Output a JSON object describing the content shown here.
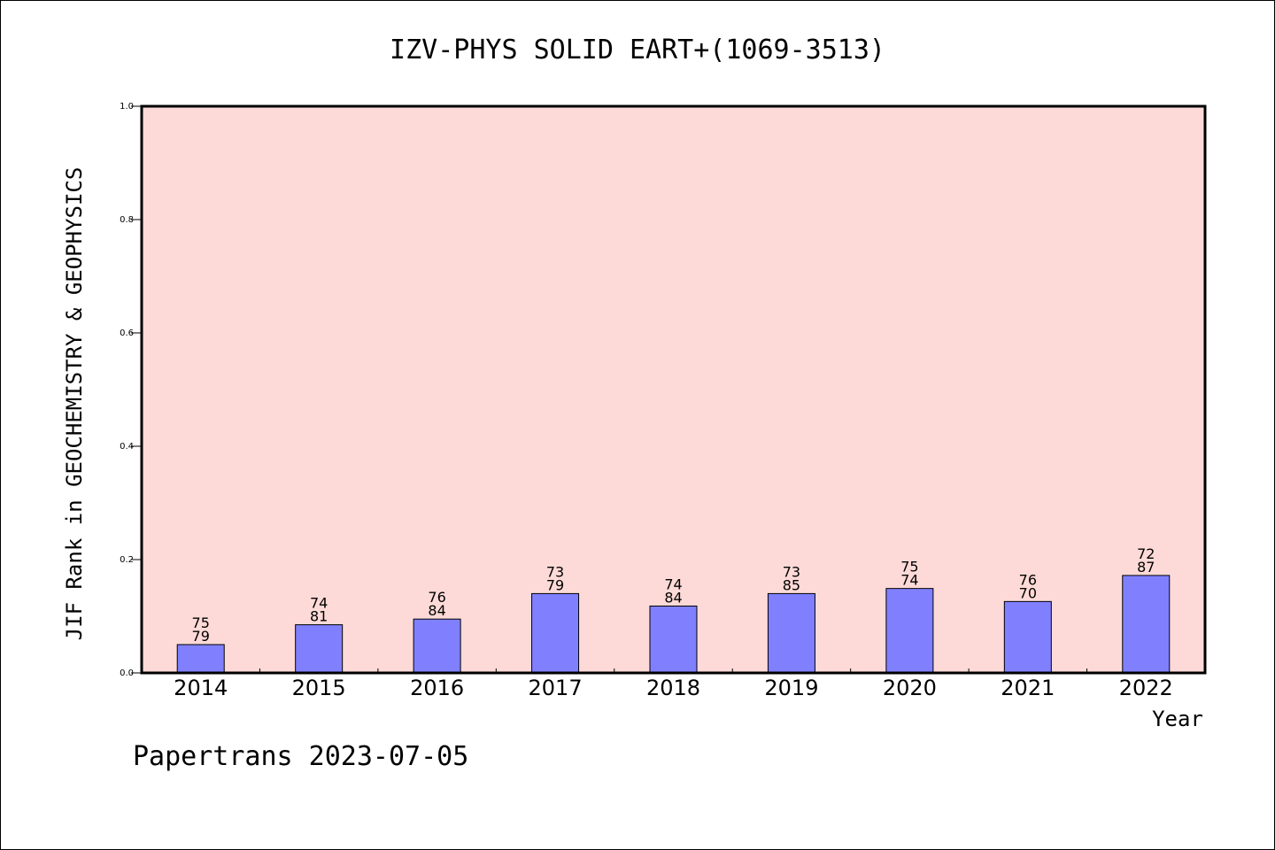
{
  "chart_data": {
    "type": "bar",
    "title": "IZV-PHYS SOLID EART+(1069-3513)",
    "xlabel": "Year",
    "ylabel": "JIF Rank in GEOCHEMISTRY & GEOPHYSICS",
    "ylim": [
      0.0,
      1.0
    ],
    "yticks": [
      "0.0",
      "0.2",
      "0.4",
      "0.6",
      "0.8",
      "1.0"
    ],
    "categories": [
      "2014",
      "2015",
      "2016",
      "2017",
      "2018",
      "2019",
      "2020",
      "2021",
      "2022"
    ],
    "values": [
      0.05,
      0.085,
      0.095,
      0.14,
      0.118,
      0.14,
      0.149,
      0.126,
      0.172
    ],
    "bar_labels_top": [
      "75",
      "74",
      "76",
      "73",
      "74",
      "73",
      "75",
      "76",
      "72"
    ],
    "bar_labels_bottom": [
      "79",
      "81",
      "84",
      "79",
      "84",
      "85",
      "74",
      "70",
      "87"
    ],
    "grid": false,
    "colors": {
      "plot_background": "#fddad7",
      "bar_fill": "#8080ff",
      "bar_stroke": "#000000",
      "axis": "#000000"
    }
  },
  "footer": {
    "text": "Papertrans 2023-07-05"
  }
}
